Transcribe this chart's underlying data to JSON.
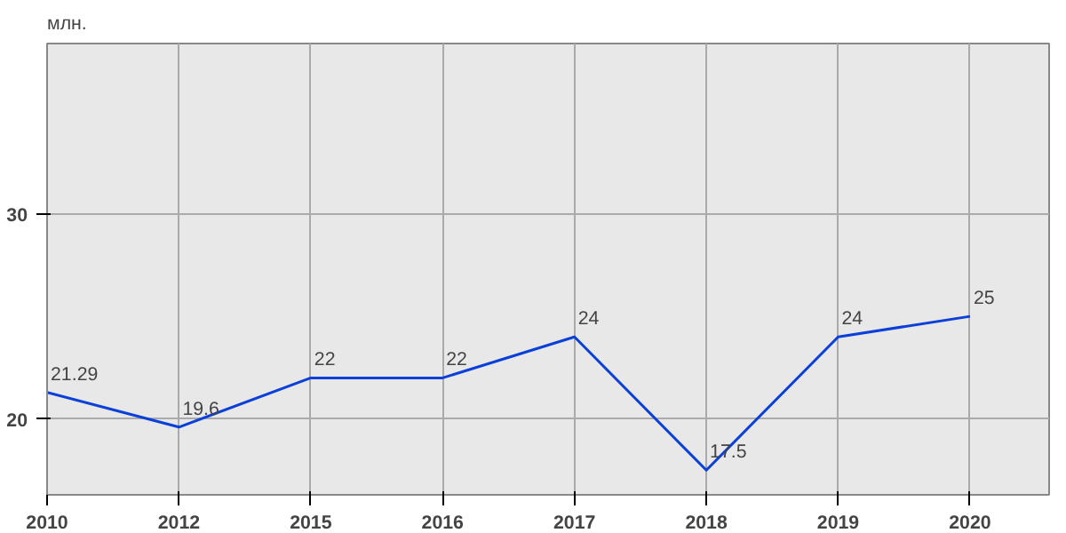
{
  "chart_data": {
    "type": "line",
    "ylabel": "млн.",
    "categories": [
      "2010",
      "2012",
      "2015",
      "2016",
      "2017",
      "2018",
      "2019",
      "2020"
    ],
    "series": [
      {
        "color": "#0a3fd8",
        "values": [
          21.29,
          19.6,
          22,
          22,
          24,
          17.5,
          24,
          25
        ]
      }
    ],
    "ylim": [
      16.3,
      38.3
    ],
    "yticks": [
      20,
      30
    ],
    "grid": true,
    "data_labels": true,
    "marker": "none",
    "line_style": "solid"
  }
}
